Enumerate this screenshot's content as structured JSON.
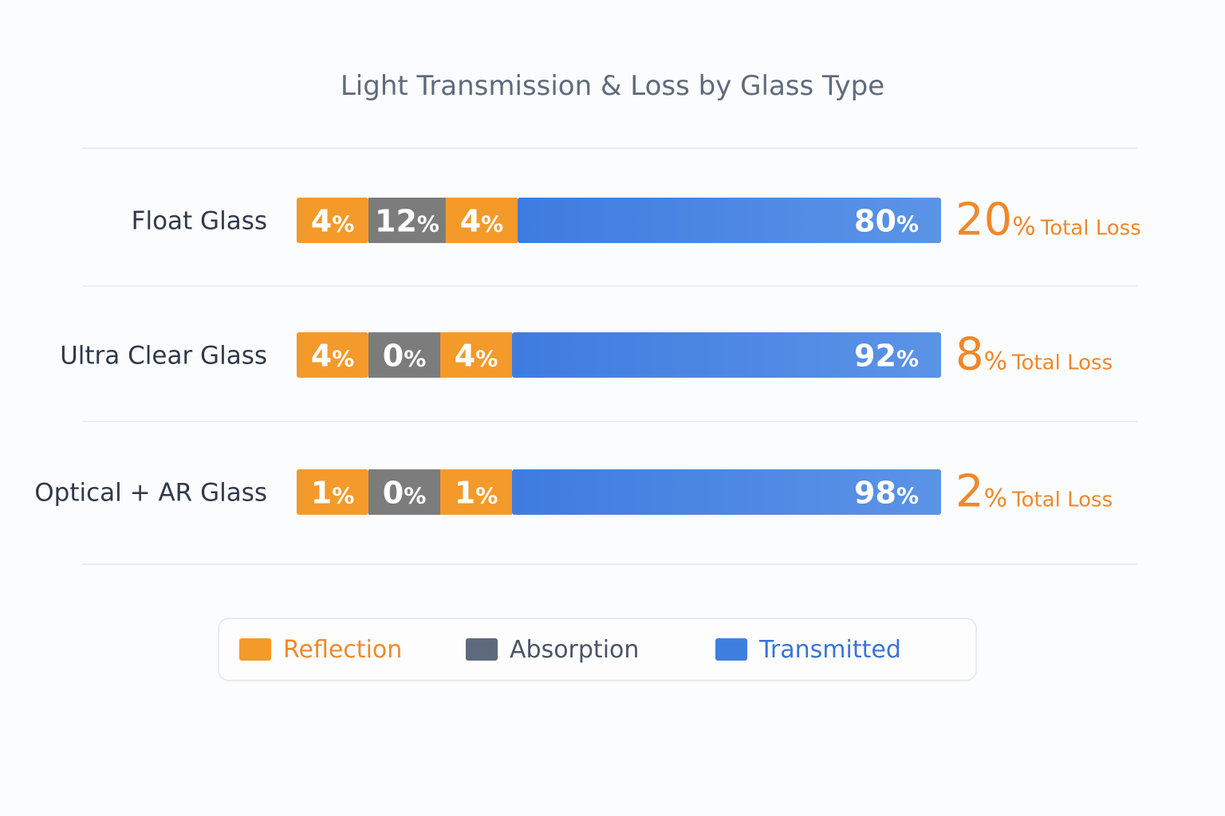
{
  "chart_data": {
    "type": "bar",
    "orientation": "horizontal",
    "stacked": true,
    "title": "Light Transmission & Loss by Glass Type",
    "categories": [
      "Float Glass",
      "Ultra Clear Glass",
      "Optical + AR Glass"
    ],
    "series": [
      {
        "name": "Reflection",
        "values": [
          4,
          4,
          1
        ],
        "color": "#f39a2a"
      },
      {
        "name": "Absorption",
        "values": [
          12,
          0,
          0
        ],
        "color": "#7c7c7c"
      },
      {
        "name": "Reflection",
        "values": [
          4,
          4,
          1
        ],
        "color": "#f39a2a"
      },
      {
        "name": "Transmitted",
        "values": [
          80,
          92,
          98
        ],
        "color": "#4a85e3"
      }
    ],
    "total_loss": [
      20,
      8,
      2
    ],
    "total_loss_suffix": "Total Loss",
    "value_suffix": "%",
    "xlim": [
      0,
      100
    ],
    "legend_position": "bottom",
    "grid": false
  },
  "legend": [
    {
      "label": "Reflection",
      "color": "#f39a2a",
      "text_color": "#ef8a2c"
    },
    {
      "label": "Absorption",
      "color": "#5c6a7c",
      "text_color": "#4a5565"
    },
    {
      "label": "Transmitted",
      "color": "#3f7fe0",
      "text_color": "#3a74d6"
    }
  ],
  "colors": {
    "reflection": "#f39a2a",
    "absorption": "#7c7c7c",
    "transmitted": "#4a85e3",
    "total_loss": "#f0882a",
    "category_label": "#2f3a4a",
    "title": "#5f6b7c",
    "separator": "#e6e9ee"
  }
}
